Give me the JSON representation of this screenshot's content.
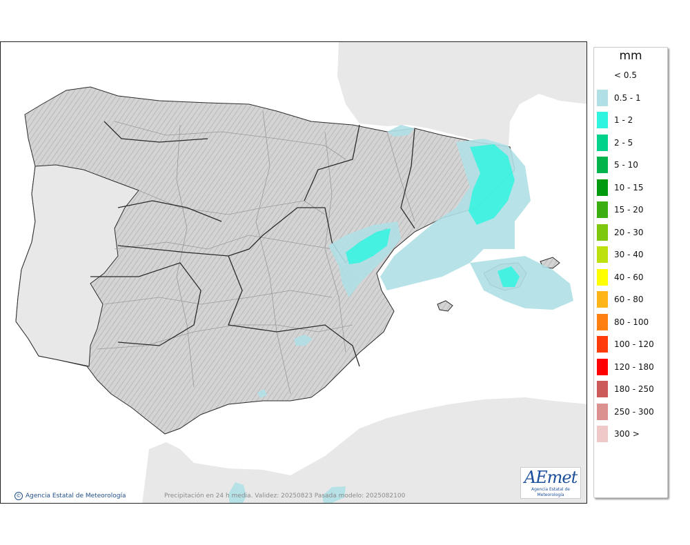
{
  "map": {
    "footer_note": "Precipitación en 24 h media. Validez: 20250823 Pasada modelo: 2025082100",
    "copyright": "Agencia Estatal de Meteorología",
    "logo_text": "AEmet",
    "logo_subtitle": "Agencia Estatal de Meteorología",
    "colors": {
      "sea": "#ffffff",
      "land_foreign": "#e8e8e8",
      "land_iberia": "#cfcfcf",
      "borders": "#2a2a2a",
      "admin_lines": "#9a9a9a"
    }
  },
  "legend": {
    "unit": "mm",
    "entries": [
      {
        "label": "< 0.5",
        "color": ""
      },
      {
        "label": "0.5 - 1",
        "color": "#b0e0e6"
      },
      {
        "label": "1 - 2",
        "color": "#31f4e0"
      },
      {
        "label": "2 - 5",
        "color": "#00d28b"
      },
      {
        "label": "5 - 10",
        "color": "#00b44b"
      },
      {
        "label": "10 - 15",
        "color": "#009a0e"
      },
      {
        "label": "15 - 20",
        "color": "#3bae12"
      },
      {
        "label": "20 - 30",
        "color": "#7dc80d"
      },
      {
        "label": "30 - 40",
        "color": "#bde00f"
      },
      {
        "label": "40 - 60",
        "color": "#ffff00"
      },
      {
        "label": "60 - 80",
        "color": "#ffb417"
      },
      {
        "label": "80 - 100",
        "color": "#ff7f10"
      },
      {
        "label": "100 - 120",
        "color": "#ff3c0c"
      },
      {
        "label": "120 - 180",
        "color": "#ff0000"
      },
      {
        "label": "180 - 250",
        "color": "#cd5a5a"
      },
      {
        "label": "250 - 300",
        "color": "#dc9191"
      },
      {
        "label": "300 >",
        "color": "#efc8c8"
      }
    ]
  }
}
